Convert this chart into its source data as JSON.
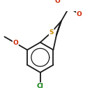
{
  "bg_color": "#ffffff",
  "bond_color": "#1a1a1a",
  "s_color": "#cc8800",
  "o_color": "#cc2200",
  "cl_color": "#007700",
  "line_width": 1.3,
  "figsize": [
    1.52,
    1.52
  ],
  "dpi": 100,
  "s_label": "S",
  "o_label": "O",
  "cl_label": "Cl",
  "font_size": 6.5
}
